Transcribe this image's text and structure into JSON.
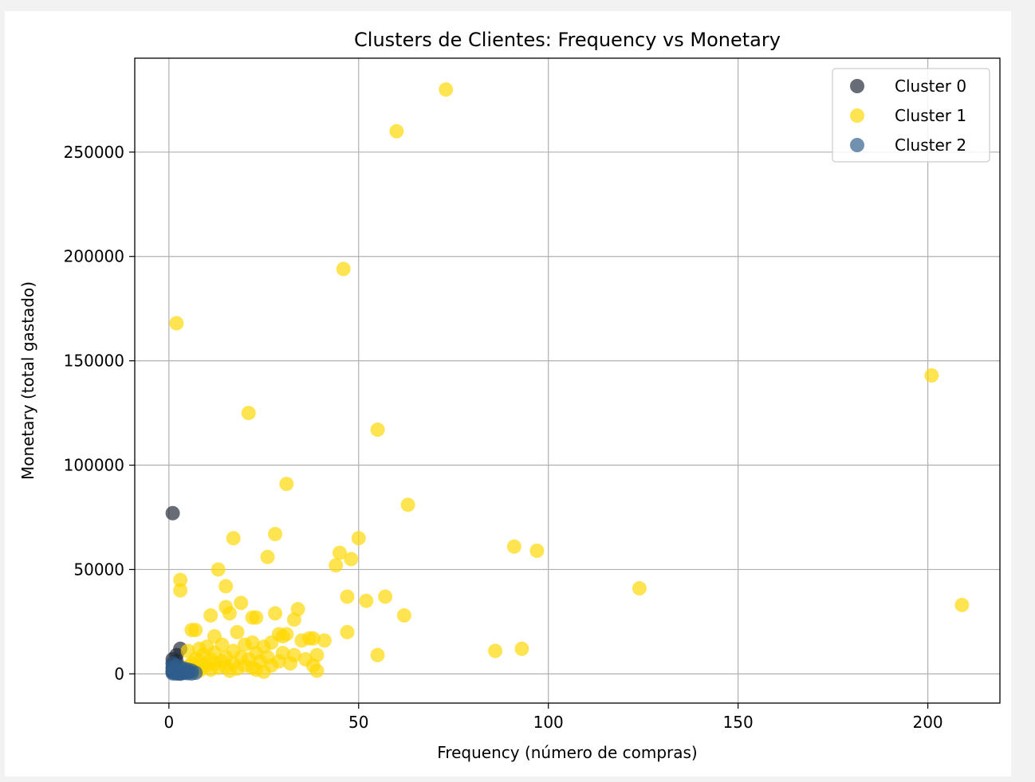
{
  "chart_data": {
    "type": "scatter",
    "title": "Clusters de Clientes: Frequency vs Monetary",
    "xlabel": "Frequency (número de compras)",
    "ylabel": "Monetary (total gastado)",
    "xlim": [
      -9,
      219
    ],
    "ylim": [
      -14000,
      295000
    ],
    "xticks": [
      0,
      50,
      100,
      150,
      200
    ],
    "yticks": [
      0,
      50000,
      100000,
      150000,
      200000,
      250000
    ],
    "grid": true,
    "legend_position": "top-right",
    "series": [
      {
        "name": "Cluster 0",
        "color": "#1f2633",
        "points": [
          [
            1,
            77000
          ],
          [
            3,
            12000
          ],
          [
            2,
            9000
          ],
          [
            1,
            7000
          ],
          [
            2,
            6000
          ],
          [
            1,
            5000
          ],
          [
            2,
            4000
          ],
          [
            1,
            3000
          ],
          [
            3,
            2500
          ],
          [
            2,
            2000
          ],
          [
            1,
            1500
          ],
          [
            4,
            1000
          ],
          [
            1,
            800
          ],
          [
            2,
            500
          ],
          [
            3,
            300
          ]
        ]
      },
      {
        "name": "Cluster 1",
        "color": "#ffd700",
        "points": [
          [
            73,
            280000
          ],
          [
            60,
            260000
          ],
          [
            46,
            194000
          ],
          [
            2,
            168000
          ],
          [
            201,
            143000
          ],
          [
            21,
            125000
          ],
          [
            55,
            117000
          ],
          [
            31,
            91000
          ],
          [
            63,
            81000
          ],
          [
            28,
            67000
          ],
          [
            17,
            65000
          ],
          [
            50,
            65000
          ],
          [
            91,
            61000
          ],
          [
            97,
            59000
          ],
          [
            45,
            58000
          ],
          [
            26,
            56000
          ],
          [
            48,
            55000
          ],
          [
            44,
            52000
          ],
          [
            13,
            50000
          ],
          [
            3,
            45000
          ],
          [
            3,
            40000
          ],
          [
            124,
            41000
          ],
          [
            15,
            42000
          ],
          [
            47,
            37000
          ],
          [
            57,
            37000
          ],
          [
            52,
            35000
          ],
          [
            19,
            34000
          ],
          [
            209,
            33000
          ],
          [
            15,
            32000
          ],
          [
            34,
            31000
          ],
          [
            16,
            29000
          ],
          [
            28,
            29000
          ],
          [
            62,
            28000
          ],
          [
            11,
            28000
          ],
          [
            22,
            27000
          ],
          [
            23,
            27000
          ],
          [
            33,
            26000
          ],
          [
            7,
            21000
          ],
          [
            6,
            21000
          ],
          [
            18,
            20000
          ],
          [
            47,
            20000
          ],
          [
            29,
            19000
          ],
          [
            31,
            19000
          ],
          [
            30,
            18000
          ],
          [
            12,
            18000
          ],
          [
            37,
            17000
          ],
          [
            38,
            17000
          ],
          [
            41,
            16000
          ],
          [
            35,
            16000
          ],
          [
            22,
            15000
          ],
          [
            27,
            15000
          ],
          [
            14,
            14000
          ],
          [
            20,
            14000
          ],
          [
            25,
            13000
          ],
          [
            10,
            13000
          ],
          [
            8,
            12000
          ],
          [
            93,
            12000
          ],
          [
            86,
            11000
          ],
          [
            5,
            11000
          ],
          [
            17,
            11000
          ],
          [
            30,
            10000
          ],
          [
            12,
            10000
          ],
          [
            23,
            10000
          ],
          [
            33,
            9000
          ],
          [
            55,
            9000
          ],
          [
            39,
            9000
          ],
          [
            9,
            9000
          ],
          [
            15,
            8000
          ],
          [
            19,
            8000
          ],
          [
            26,
            8000
          ],
          [
            36,
            7000
          ],
          [
            11,
            7000
          ],
          [
            7,
            7000
          ],
          [
            21,
            7000
          ],
          [
            29,
            6000
          ],
          [
            14,
            6000
          ],
          [
            24,
            6000
          ],
          [
            8,
            6000
          ],
          [
            32,
            5000
          ],
          [
            17,
            5000
          ],
          [
            6,
            5000
          ],
          [
            12,
            5000
          ],
          [
            38,
            4000
          ],
          [
            20,
            4000
          ],
          [
            10,
            4000
          ],
          [
            27,
            4000
          ],
          [
            5,
            3500
          ],
          [
            15,
            3500
          ],
          [
            22,
            3000
          ],
          [
            9,
            3000
          ],
          [
            13,
            3000
          ],
          [
            18,
            2500
          ],
          [
            7,
            2500
          ],
          [
            23,
            2000
          ],
          [
            11,
            2000
          ],
          [
            39,
            1500
          ],
          [
            8,
            1500
          ],
          [
            16,
            1500
          ],
          [
            25,
            1000
          ],
          [
            6,
            1000
          ]
        ]
      },
      {
        "name": "Cluster 2",
        "color": "#2f5d8c",
        "points": [
          [
            1,
            5000
          ],
          [
            2,
            4000
          ],
          [
            3,
            3000
          ],
          [
            4,
            2500
          ],
          [
            5,
            2000
          ],
          [
            6,
            1500
          ],
          [
            1,
            1000
          ],
          [
            2,
            800
          ],
          [
            3,
            600
          ],
          [
            4,
            400
          ],
          [
            5,
            300
          ],
          [
            6,
            200
          ],
          [
            7,
            500
          ],
          [
            1,
            200
          ],
          [
            2,
            100
          ],
          [
            3,
            50
          ],
          [
            4,
            1200
          ],
          [
            5,
            900
          ],
          [
            1,
            3000
          ],
          [
            2,
            2000
          ]
        ]
      }
    ]
  }
}
